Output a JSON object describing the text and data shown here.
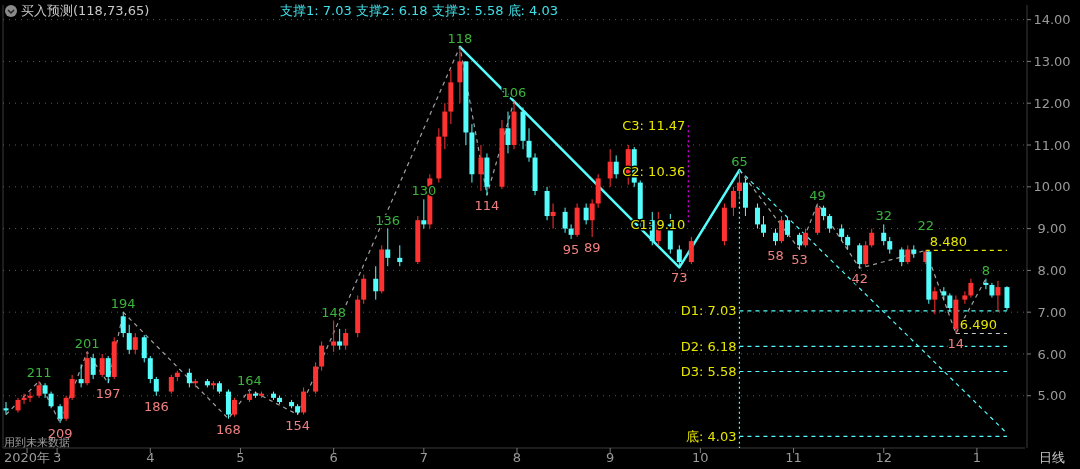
{
  "chart_data": {
    "type": "candlestick",
    "title": "买入预测(118,73,65)",
    "subtitle": "支撑1: 7.03 支撑2: 6.18 支撑3: 5.58 底: 4.03",
    "xlim": [
      "2020-02-12",
      "2021-01-17"
    ],
    "xticks": [
      {
        "value": "2020-02-20",
        "label": "2020年"
      },
      {
        "value": "2020-03-01",
        "label": "3"
      },
      {
        "value": "2020-04-01",
        "label": "4"
      },
      {
        "value": "2020-05-01",
        "label": "5"
      },
      {
        "value": "2020-06-01",
        "label": "6"
      },
      {
        "value": "2020-07-01",
        "label": "7"
      },
      {
        "value": "2020-08-01",
        "label": "8"
      },
      {
        "value": "2020-09-01",
        "label": "9"
      },
      {
        "value": "2020-10-01",
        "label": "10"
      },
      {
        "value": "2020-11-01",
        "label": "11"
      },
      {
        "value": "2020-12-01",
        "label": "12"
      },
      {
        "value": "2021-01-01",
        "label": "1"
      }
    ],
    "ylim": [
      3.75,
      14.35
    ],
    "yticks": [
      {
        "value": 5,
        "label": "5.00"
      },
      {
        "value": 6,
        "label": "6.00"
      },
      {
        "value": 7,
        "label": "7.00"
      },
      {
        "value": 8,
        "label": "8.00"
      },
      {
        "value": 9,
        "label": "9.00"
      },
      {
        "value": 10,
        "label": "10.00"
      },
      {
        "value": 11,
        "label": "11.00"
      },
      {
        "value": 12,
        "label": "12.00"
      },
      {
        "value": 13,
        "label": "13.00"
      },
      {
        "value": 14,
        "label": "14.00"
      }
    ],
    "grid": "y",
    "series": [
      {
        "type": "line",
        "color": "#a0a0a0",
        "line_style": "dashed",
        "x": [
          "2020-02-13",
          "2020-02-24",
          "2020-03-02",
          "2020-03-11",
          "2020-03-18",
          "2020-03-23",
          "2020-04-27",
          "2020-05-04",
          "2020-05-20",
          "2020-07-13",
          "2020-07-22",
          "2020-07-31",
          "2020-09-24",
          "2020-10-14",
          "2020-11-03",
          "2020-11-09",
          "2020-11-23",
          "2020-12-15",
          "2020-12-25",
          "2021-01-04"
        ],
        "values": [
          4.55,
          5.35,
          4.35,
          6.05,
          5.3,
          7.0,
          4.45,
          5.15,
          4.55,
          13.35,
          9.8,
          12.05,
          8.07,
          10.4,
          8.5,
          9.6,
          8.05,
          8.48,
          6.49,
          7.8
        ]
      },
      {
        "type": "line",
        "color": "#54fcfc",
        "line_style": "solid",
        "x": [
          "2020-07-13",
          "2020-09-24",
          "2020-10-14"
        ],
        "values": [
          13.35,
          8.07,
          10.4
        ]
      },
      {
        "type": "line",
        "color": "#54fcfc",
        "line_style": "dashed",
        "x": [
          "2020-10-14",
          "2021-01-11"
        ],
        "values": [
          10.4,
          4.1
        ]
      },
      {
        "type": "line",
        "color": "#54fcfc",
        "line_style": "dashed",
        "x": [
          "2020-10-14",
          "2021-01-11"
        ],
        "values": [
          7.03,
          7.03
        ]
      },
      {
        "type": "line",
        "color": "#54fcfc",
        "line_style": "dashed",
        "x": [
          "2020-10-14",
          "2021-01-11"
        ],
        "values": [
          6.18,
          6.18
        ]
      },
      {
        "type": "line",
        "color": "#54fcfc",
        "line_style": "dashed",
        "x": [
          "2020-10-14",
          "2021-01-11"
        ],
        "values": [
          5.58,
          5.58
        ]
      },
      {
        "type": "line",
        "color": "#54fcfc",
        "line_style": "dashed",
        "x": [
          "2020-10-14",
          "2021-01-11"
        ],
        "values": [
          4.03,
          4.03
        ]
      },
      {
        "type": "line",
        "color": "#e6e600",
        "line_style": "dashed",
        "x": [
          "2020-12-15",
          "2021-01-11"
        ],
        "values": [
          8.48,
          8.48
        ]
      },
      {
        "type": "line",
        "color": "#c8c8c8",
        "line_style": "dashed",
        "x": [
          "2020-12-25",
          "2021-01-11"
        ],
        "values": [
          6.49,
          6.49
        ]
      },
      {
        "type": "line",
        "color": "#54fcfc",
        "line_style": "dotted",
        "x": [
          "2020-10-14",
          "2020-10-14"
        ],
        "values": [
          10.36,
          3.75
        ]
      },
      {
        "type": "line",
        "color": "#e000e0",
        "line_style": "dotted",
        "x": [
          "2020-09-27",
          "2020-09-27"
        ],
        "values": [
          11.47,
          9.1
        ]
      },
      {
        "type": "candlestick",
        "x": [
          "2020-02-13",
          "2020-02-17",
          "2020-02-19",
          "2020-02-21",
          "2020-02-24",
          "2020-02-26",
          "2020-02-28",
          "2020-03-02",
          "2020-03-04",
          "2020-03-06",
          "2020-03-09",
          "2020-03-11",
          "2020-03-13",
          "2020-03-16",
          "2020-03-18",
          "2020-03-20",
          "2020-03-23",
          "2020-03-25",
          "2020-03-27",
          "2020-03-30",
          "2020-04-01",
          "2020-04-03",
          "2020-04-08",
          "2020-04-10",
          "2020-04-14",
          "2020-04-16",
          "2020-04-20",
          "2020-04-22",
          "2020-04-24",
          "2020-04-27",
          "2020-04-29",
          "2020-05-04",
          "2020-05-06",
          "2020-05-08",
          "2020-05-12",
          "2020-05-14",
          "2020-05-18",
          "2020-05-20",
          "2020-05-22",
          "2020-05-26",
          "2020-05-28",
          "2020-06-01",
          "2020-06-03",
          "2020-06-05",
          "2020-06-09",
          "2020-06-11",
          "2020-06-15",
          "2020-06-17",
          "2020-06-19",
          "2020-06-23",
          "2020-06-29",
          "2020-07-01",
          "2020-07-03",
          "2020-07-06",
          "2020-07-08",
          "2020-07-10",
          "2020-07-13",
          "2020-07-15",
          "2020-07-17",
          "2020-07-20",
          "2020-07-22",
          "2020-07-27",
          "2020-07-29",
          "2020-07-31",
          "2020-08-03",
          "2020-08-05",
          "2020-08-07",
          "2020-08-11",
          "2020-08-13",
          "2020-08-17",
          "2020-08-19",
          "2020-08-21",
          "2020-08-24",
          "2020-08-26",
          "2020-08-28",
          "2020-09-01",
          "2020-09-03",
          "2020-09-07",
          "2020-09-09",
          "2020-09-11",
          "2020-09-15",
          "2020-09-17",
          "2020-09-21",
          "2020-09-24",
          "2020-09-28",
          "2020-10-09",
          "2020-10-12",
          "2020-10-14",
          "2020-10-16",
          "2020-10-20",
          "2020-10-22",
          "2020-10-26",
          "2020-10-28",
          "2020-10-30",
          "2020-11-03",
          "2020-11-05",
          "2020-11-09",
          "2020-11-11",
          "2020-11-13",
          "2020-11-17",
          "2020-11-19",
          "2020-11-23",
          "2020-11-25",
          "2020-11-27",
          "2020-12-01",
          "2020-12-03",
          "2020-12-07",
          "2020-12-09",
          "2020-12-11",
          "2020-12-15",
          "2020-12-16",
          "2020-12-18",
          "2020-12-21",
          "2020-12-23",
          "2020-12-25",
          "2020-12-28",
          "2020-12-30",
          "2021-01-04",
          "2021-01-06",
          "2021-01-08",
          "2021-01-11"
        ],
        "ohlc": [
          [
            4.7,
            4.85,
            4.55,
            4.65
          ],
          [
            4.65,
            4.95,
            4.6,
            4.9
          ],
          [
            4.9,
            5.05,
            4.8,
            4.95
          ],
          [
            4.95,
            5.1,
            4.85,
            5.0
          ],
          [
            5.0,
            5.35,
            4.95,
            5.25
          ],
          [
            5.25,
            5.3,
            4.95,
            5.05
          ],
          [
            5.05,
            5.1,
            4.7,
            4.75
          ],
          [
            4.75,
            4.8,
            4.35,
            4.45
          ],
          [
            4.45,
            5.0,
            4.4,
            4.95
          ],
          [
            4.95,
            5.5,
            4.9,
            5.4
          ],
          [
            5.4,
            5.75,
            5.2,
            5.3
          ],
          [
            5.3,
            6.05,
            5.25,
            5.9
          ],
          [
            5.9,
            6.0,
            5.4,
            5.5
          ],
          [
            5.5,
            6.0,
            5.45,
            5.9
          ],
          [
            5.9,
            5.95,
            5.3,
            5.45
          ],
          [
            5.45,
            6.4,
            5.4,
            6.3
          ],
          [
            6.9,
            7.0,
            6.4,
            6.5
          ],
          [
            6.5,
            6.7,
            6.0,
            6.1
          ],
          [
            6.1,
            6.5,
            6.0,
            6.4
          ],
          [
            6.4,
            6.45,
            5.8,
            5.9
          ],
          [
            5.9,
            5.95,
            5.3,
            5.4
          ],
          [
            5.4,
            5.45,
            5.0,
            5.1
          ],
          [
            5.1,
            5.5,
            5.05,
            5.45
          ],
          [
            5.45,
            5.6,
            5.35,
            5.55
          ],
          [
            5.55,
            5.65,
            5.2,
            5.3
          ],
          [
            5.3,
            5.4,
            5.2,
            5.35
          ],
          [
            5.35,
            5.4,
            5.2,
            5.25
          ],
          [
            5.25,
            5.35,
            5.15,
            5.3
          ],
          [
            5.3,
            5.35,
            5.05,
            5.1
          ],
          [
            5.1,
            5.15,
            4.45,
            4.55
          ],
          [
            4.55,
            4.95,
            4.5,
            4.9
          ],
          [
            4.9,
            5.15,
            4.85,
            5.05
          ],
          [
            5.05,
            5.1,
            4.95,
            5.0
          ],
          [
            5.0,
            5.1,
            4.95,
            5.05
          ],
          [
            5.05,
            5.1,
            4.9,
            4.95
          ],
          [
            4.95,
            5.0,
            4.8,
            4.85
          ],
          [
            4.85,
            4.9,
            4.7,
            4.75
          ],
          [
            4.75,
            4.8,
            4.55,
            4.6
          ],
          [
            4.6,
            5.2,
            4.55,
            5.1
          ],
          [
            5.1,
            5.8,
            5.05,
            5.7
          ],
          [
            5.7,
            6.3,
            5.6,
            6.2
          ],
          [
            6.2,
            6.8,
            6.05,
            6.3
          ],
          [
            6.3,
            6.6,
            6.1,
            6.2
          ],
          [
            6.2,
            6.6,
            6.1,
            6.5
          ],
          [
            6.5,
            7.4,
            6.4,
            7.3
          ],
          [
            7.3,
            7.9,
            7.2,
            7.8
          ],
          [
            7.8,
            8.1,
            7.3,
            7.5
          ],
          [
            7.5,
            8.6,
            7.45,
            8.5
          ],
          [
            8.5,
            9.0,
            8.1,
            8.3
          ],
          [
            8.3,
            8.6,
            8.1,
            8.2
          ],
          [
            8.2,
            9.3,
            8.15,
            9.2
          ],
          [
            9.2,
            9.7,
            9.0,
            9.1
          ],
          [
            9.1,
            10.3,
            9.0,
            10.2
          ],
          [
            10.2,
            11.4,
            10.1,
            11.2
          ],
          [
            11.2,
            12.0,
            10.9,
            11.8
          ],
          [
            11.8,
            12.8,
            11.5,
            12.5
          ],
          [
            12.5,
            13.35,
            12.0,
            13.0
          ],
          [
            13.0,
            13.0,
            11.0,
            11.3
          ],
          [
            11.3,
            11.5,
            10.1,
            10.3
          ],
          [
            10.3,
            11.0,
            9.9,
            10.7
          ],
          [
            10.7,
            10.8,
            9.8,
            10.0
          ],
          [
            10.0,
            11.6,
            9.95,
            11.4
          ],
          [
            11.4,
            11.8,
            10.8,
            11.0
          ],
          [
            11.0,
            12.05,
            10.9,
            11.8
          ],
          [
            11.8,
            11.9,
            10.9,
            11.1
          ],
          [
            11.1,
            11.4,
            10.6,
            10.7
          ],
          [
            10.7,
            10.8,
            9.8,
            9.9
          ],
          [
            9.9,
            10.0,
            9.2,
            9.3
          ],
          [
            9.3,
            9.6,
            9.0,
            9.4
          ],
          [
            9.4,
            9.5,
            8.9,
            9.0
          ],
          [
            9.0,
            9.1,
            8.75,
            8.85
          ],
          [
            8.85,
            9.6,
            8.8,
            9.5
          ],
          [
            9.5,
            9.6,
            9.1,
            9.2
          ],
          [
            9.2,
            9.7,
            8.8,
            9.6
          ],
          [
            9.6,
            10.3,
            9.5,
            10.2
          ],
          [
            10.2,
            10.9,
            10.0,
            10.6
          ],
          [
            10.6,
            10.75,
            10.2,
            10.3
          ],
          [
            10.3,
            11.0,
            10.05,
            10.9
          ],
          [
            10.9,
            10.95,
            10.0,
            10.1
          ],
          [
            10.1,
            10.15,
            9.0,
            9.2
          ],
          [
            9.2,
            9.4,
            8.6,
            8.7
          ],
          [
            8.7,
            9.4,
            8.6,
            9.1
          ],
          [
            9.1,
            9.35,
            8.4,
            8.5
          ],
          [
            8.5,
            8.6,
            8.07,
            8.2
          ],
          [
            8.2,
            8.8,
            8.15,
            8.7
          ],
          [
            8.7,
            9.6,
            8.6,
            9.5
          ],
          [
            9.5,
            10.0,
            9.3,
            9.9
          ],
          [
            9.9,
            10.4,
            9.7,
            10.1
          ],
          [
            10.1,
            10.2,
            9.3,
            9.5
          ],
          [
            9.5,
            9.6,
            9.0,
            9.1
          ],
          [
            9.1,
            9.3,
            8.8,
            8.9
          ],
          [
            8.9,
            9.0,
            8.6,
            8.7
          ],
          [
            8.7,
            9.3,
            8.65,
            9.2
          ],
          [
            9.2,
            9.25,
            8.8,
            8.85
          ],
          [
            8.85,
            8.9,
            8.5,
            8.6
          ],
          [
            8.6,
            9.0,
            8.55,
            8.9
          ],
          [
            8.9,
            9.6,
            8.85,
            9.5
          ],
          [
            9.5,
            9.55,
            9.2,
            9.3
          ],
          [
            9.3,
            9.35,
            8.9,
            9.0
          ],
          [
            9.0,
            9.1,
            8.7,
            8.8
          ],
          [
            8.8,
            8.85,
            8.5,
            8.6
          ],
          [
            8.6,
            8.65,
            8.05,
            8.15
          ],
          [
            8.15,
            8.7,
            8.1,
            8.6
          ],
          [
            8.6,
            9.0,
            8.55,
            8.9
          ],
          [
            8.9,
            9.1,
            8.6,
            8.7
          ],
          [
            8.7,
            8.8,
            8.4,
            8.5
          ],
          [
            8.5,
            8.55,
            8.1,
            8.2
          ],
          [
            8.2,
            8.6,
            8.15,
            8.5
          ],
          [
            8.5,
            8.6,
            8.3,
            8.4
          ],
          [
            8.2,
            8.48,
            8.15,
            8.45
          ],
          [
            8.45,
            8.46,
            7.2,
            7.3
          ],
          [
            7.3,
            7.6,
            6.95,
            7.5
          ],
          [
            7.5,
            7.6,
            7.3,
            7.4
          ],
          [
            7.4,
            7.45,
            7.0,
            7.1
          ],
          [
            6.6,
            7.4,
            6.49,
            7.3
          ],
          [
            7.3,
            7.5,
            7.2,
            7.4
          ],
          [
            7.4,
            7.8,
            7.35,
            7.7
          ],
          [
            7.7,
            7.8,
            7.55,
            7.65
          ],
          [
            7.65,
            7.7,
            7.35,
            7.4
          ],
          [
            7.4,
            7.75,
            7.0,
            7.6
          ],
          [
            7.6,
            7.62,
            7.05,
            7.1
          ]
        ],
        "colors": [
          "#54fcfc",
          "#ff3232",
          "#ff3232",
          "#ff3232",
          "#ff3232",
          "#54fcfc",
          "#54fcfc",
          "#54fcfc",
          "#ff3232",
          "#ff3232",
          "#54fcfc",
          "#ff3232",
          "#54fcfc",
          "#ff3232",
          "#54fcfc",
          "#ff3232",
          "#54fcfc",
          "#54fcfc",
          "#ff3232",
          "#54fcfc",
          "#54fcfc",
          "#54fcfc",
          "#ff3232",
          "#ff3232",
          "#54fcfc",
          "#ff3232",
          "#54fcfc",
          "#ff3232",
          "#54fcfc",
          "#54fcfc",
          "#ff3232",
          "#ff3232",
          "#54fcfc",
          "#ff3232",
          "#54fcfc",
          "#54fcfc",
          "#54fcfc",
          "#54fcfc",
          "#ff3232",
          "#ff3232",
          "#ff3232",
          "#ff3232",
          "#54fcfc",
          "#ff3232",
          "#ff3232",
          "#ff3232",
          "#54fcfc",
          "#ff3232",
          "#54fcfc",
          "#54fcfc",
          "#ff3232",
          "#54fcfc",
          "#ff3232",
          "#ff3232",
          "#ff3232",
          "#ff3232",
          "#ff3232",
          "#54fcfc",
          "#54fcfc",
          "#ff3232",
          "#54fcfc",
          "#ff3232",
          "#54fcfc",
          "#ff3232",
          "#54fcfc",
          "#54fcfc",
          "#54fcfc",
          "#54fcfc",
          "#ff3232",
          "#54fcfc",
          "#54fcfc",
          "#ff3232",
          "#54fcfc",
          "#ff3232",
          "#ff3232",
          "#ff3232",
          "#54fcfc",
          "#ff3232",
          "#54fcfc",
          "#54fcfc",
          "#54fcfc",
          "#ff3232",
          "#54fcfc",
          "#54fcfc",
          "#ff3232",
          "#ff3232",
          "#ff3232",
          "#ff3232",
          "#54fcfc",
          "#54fcfc",
          "#54fcfc",
          "#54fcfc",
          "#ff3232",
          "#54fcfc",
          "#54fcfc",
          "#ff3232",
          "#ff3232",
          "#54fcfc",
          "#54fcfc",
          "#54fcfc",
          "#54fcfc",
          "#54fcfc",
          "#ff3232",
          "#ff3232",
          "#54fcfc",
          "#54fcfc",
          "#54fcfc",
          "#ff3232",
          "#54fcfc",
          "#ff3232",
          "#54fcfc",
          "#ff3232",
          "#54fcfc",
          "#54fcfc",
          "#ff3232",
          "#ff3232",
          "#ff3232",
          "#54fcfc",
          "#54fcfc",
          "#ff3232",
          "#54fcfc"
        ]
      }
    ],
    "annotations": [
      {
        "text": "211",
        "x": "2020-02-24",
        "y": 5.35
      },
      {
        "text": "209",
        "x": "2020-03-02",
        "y": 4.35
      },
      {
        "text": "201",
        "x": "2020-03-11",
        "y": 6.05
      },
      {
        "text": "197",
        "x": "2020-03-18",
        "y": 5.3
      },
      {
        "text": "194",
        "x": "2020-03-23",
        "y": 7.0
      },
      {
        "text": "186",
        "x": "2020-04-03",
        "y": 5.0
      },
      {
        "text": "168",
        "x": "2020-04-27",
        "y": 4.45
      },
      {
        "text": "164",
        "x": "2020-05-04",
        "y": 5.15
      },
      {
        "text": "154",
        "x": "2020-05-20",
        "y": 4.55
      },
      {
        "text": "148",
        "x": "2020-06-01",
        "y": 6.8
      },
      {
        "text": "136",
        "x": "2020-06-19",
        "y": 9.0
      },
      {
        "text": "130",
        "x": "2020-07-01",
        "y": 9.7
      },
      {
        "text": "118",
        "x": "2020-07-13",
        "y": 13.35
      },
      {
        "text": "114",
        "x": "2020-07-22",
        "y": 9.8
      },
      {
        "text": "106",
        "x": "2020-07-31",
        "y": 12.05
      },
      {
        "text": "95",
        "x": "2020-08-19",
        "y": 8.75
      },
      {
        "text": "89",
        "x": "2020-08-26",
        "y": 8.8
      },
      {
        "text": "73",
        "x": "2020-09-24",
        "y": 8.07
      },
      {
        "text": "65",
        "x": "2020-10-14",
        "y": 10.4
      },
      {
        "text": "58",
        "x": "2020-10-26",
        "y": 8.6
      },
      {
        "text": "53",
        "x": "2020-11-03",
        "y": 8.5
      },
      {
        "text": "49",
        "x": "2020-11-09",
        "y": 9.6
      },
      {
        "text": "42",
        "x": "2020-11-23",
        "y": 8.05
      },
      {
        "text": "32",
        "x": "2020-12-01",
        "y": 9.1
      },
      {
        "text": "22",
        "x": "2020-12-15",
        "y": 8.48
      },
      {
        "text": "14",
        "x": "2020-12-25",
        "y": 6.49
      },
      {
        "text": "8",
        "x": "2021-01-04",
        "y": 7.8
      },
      {
        "text": "C3: 11.47",
        "x": "2020-09-27",
        "y": 11.47
      },
      {
        "text": "C2: 10.36",
        "x": "2020-09-27",
        "y": 10.36
      },
      {
        "text": "C1: 9.10",
        "x": "2020-09-27",
        "y": 9.1
      },
      {
        "text": "D1: 7.03",
        "x": "2020-10-14",
        "y": 7.03
      },
      {
        "text": "D2: 6.18",
        "x": "2020-10-14",
        "y": 6.18
      },
      {
        "text": "D3: 5.58",
        "x": "2020-10-14",
        "y": 5.58
      },
      {
        "text": "底: 4.03",
        "x": "2020-10-14",
        "y": 4.03
      },
      {
        "text": "8.480",
        "x": "2020-12-15",
        "y": 8.48
      },
      {
        "text": "6.490",
        "x": "2020-12-25",
        "y": 6.49
      },
      "用到未来数据",
      "日线"
    ]
  }
}
